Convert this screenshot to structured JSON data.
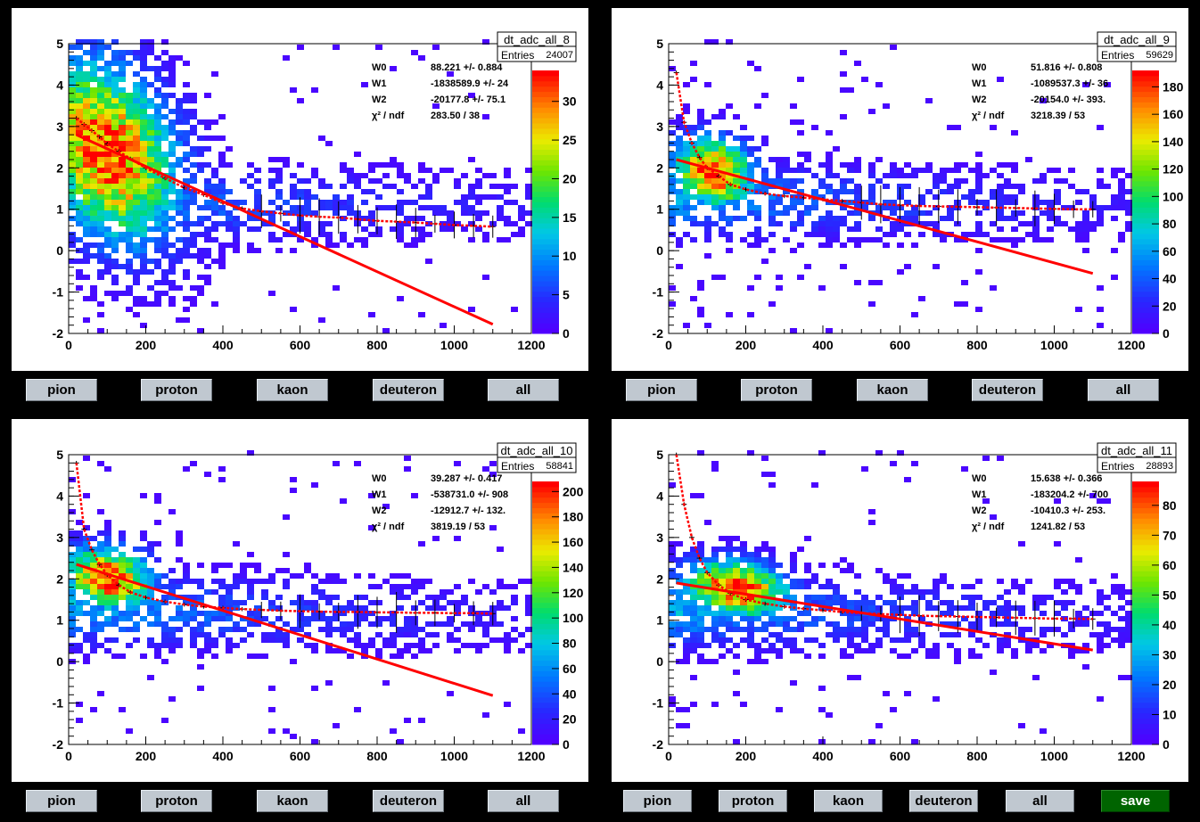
{
  "buttons": {
    "pion": "pion",
    "proton": "proton",
    "kaon": "kaon",
    "deuteron": "deuteron",
    "all": "all",
    "save": "save"
  },
  "chart_data": [
    {
      "type": "scatter",
      "title": "dt_adc_all_8",
      "entries_label": "Entries",
      "entries": "24007",
      "xlim": [
        0,
        1200
      ],
      "ylim": [
        -2,
        5
      ],
      "xticks": [
        0,
        200,
        400,
        600,
        800,
        1000,
        1200
      ],
      "yticks": [
        -2,
        -1,
        0,
        1,
        2,
        3,
        4,
        5
      ],
      "zticks": [
        0,
        5,
        10,
        15,
        20,
        25,
        30
      ],
      "zmax": 34,
      "fit": [
        {
          "name": "W0",
          "value": "88.221 +/- 0.884"
        },
        {
          "name": "W1",
          "value": "-1838589.9 +/- 24"
        },
        {
          "name": "W2",
          "value": "-20177.8 +/- 75.1"
        }
      ],
      "chi2_label": "χ² / ndf",
      "chi2": "283.50 / 38",
      "line": {
        "x": [
          20,
          1100
        ],
        "y": [
          2.8,
          -1.78
        ]
      },
      "profile": [
        [
          20,
          3.2
        ],
        [
          40,
          3.05
        ],
        [
          60,
          2.9
        ],
        [
          80,
          2.75
        ],
        [
          100,
          2.58
        ],
        [
          130,
          2.4
        ],
        [
          160,
          2.22
        ],
        [
          200,
          2.0
        ],
        [
          250,
          1.75
        ],
        [
          300,
          1.52
        ],
        [
          350,
          1.35
        ],
        [
          400,
          1.15
        ],
        [
          450,
          1.02
        ],
        [
          500,
          0.95
        ],
        [
          550,
          0.9
        ],
        [
          600,
          0.85
        ],
        [
          650,
          0.82
        ],
        [
          700,
          0.8
        ],
        [
          750,
          0.76
        ],
        [
          800,
          0.72
        ],
        [
          850,
          0.7
        ],
        [
          900,
          0.68
        ],
        [
          950,
          0.65
        ],
        [
          1000,
          0.62
        ],
        [
          1050,
          0.6
        ],
        [
          1100,
          0.58
        ]
      ],
      "blob": {
        "cx": 95,
        "cy": 2.4,
        "sx": 120,
        "sy": 1.35,
        "slope": -0.0038,
        "peak": 30
      }
    },
    {
      "type": "scatter",
      "title": "dt_adc_all_9",
      "entries_label": "Entries",
      "entries": "59629",
      "xlim": [
        0,
        1200
      ],
      "ylim": [
        -2,
        5
      ],
      "xticks": [
        0,
        200,
        400,
        600,
        800,
        1000,
        1200
      ],
      "yticks": [
        -2,
        -1,
        0,
        1,
        2,
        3,
        4,
        5
      ],
      "zticks": [
        0,
        20,
        40,
        60,
        80,
        100,
        120,
        140,
        160,
        180
      ],
      "zmax": 192,
      "fit": [
        {
          "name": "W0",
          "value": "51.816 +/- 0.808"
        },
        {
          "name": "W1",
          "value": "-1089537.3 +/- 36"
        },
        {
          "name": "W2",
          "value": "-20154.0 +/- 393."
        }
      ],
      "chi2_label": "χ² / ndf",
      "chi2": "3218.39 / 53",
      "line": {
        "x": [
          20,
          1100
        ],
        "y": [
          2.2,
          -0.55
        ]
      },
      "profile": [
        [
          20,
          4.3
        ],
        [
          40,
          3.1
        ],
        [
          60,
          2.6
        ],
        [
          80,
          2.25
        ],
        [
          100,
          2.0
        ],
        [
          130,
          1.8
        ],
        [
          160,
          1.6
        ],
        [
          200,
          1.48
        ],
        [
          250,
          1.38
        ],
        [
          300,
          1.32
        ],
        [
          350,
          1.28
        ],
        [
          400,
          1.24
        ],
        [
          450,
          1.2
        ],
        [
          500,
          1.16
        ],
        [
          550,
          1.12
        ],
        [
          600,
          1.1
        ],
        [
          650,
          1.08
        ],
        [
          700,
          1.07
        ],
        [
          750,
          1.06
        ],
        [
          800,
          1.05
        ],
        [
          850,
          1.04
        ],
        [
          900,
          1.03
        ],
        [
          950,
          1.02
        ],
        [
          1000,
          1.01
        ],
        [
          1050,
          1.0
        ],
        [
          1100,
          1.0
        ]
      ],
      "blob": {
        "cx": 110,
        "cy": 1.9,
        "sx": 70,
        "sy": 0.55,
        "slope": -0.0012,
        "peak": 180
      }
    },
    {
      "type": "scatter",
      "title": "dt_adc_all_10",
      "entries_label": "Entries",
      "entries": "58841",
      "xlim": [
        0,
        1200
      ],
      "ylim": [
        -2,
        5
      ],
      "xticks": [
        0,
        200,
        400,
        600,
        800,
        1000,
        1200
      ],
      "yticks": [
        -2,
        -1,
        0,
        1,
        2,
        3,
        4,
        5
      ],
      "zticks": [
        0,
        20,
        40,
        60,
        80,
        100,
        120,
        140,
        160,
        180,
        200
      ],
      "zmax": 208,
      "fit": [
        {
          "name": "W0",
          "value": "39.287 +/- 0.417"
        },
        {
          "name": "W1",
          "value": "-538731.0 +/- 908"
        },
        {
          "name": "W2",
          "value": "-12912.7 +/- 132."
        }
      ],
      "chi2_label": "χ² / ndf",
      "chi2": "3819.19 / 53",
      "line": {
        "x": [
          20,
          1100
        ],
        "y": [
          2.35,
          -0.82
        ]
      },
      "profile": [
        [
          20,
          4.8
        ],
        [
          40,
          3.2
        ],
        [
          60,
          2.7
        ],
        [
          80,
          2.35
        ],
        [
          100,
          2.1
        ],
        [
          130,
          1.85
        ],
        [
          160,
          1.68
        ],
        [
          200,
          1.55
        ],
        [
          250,
          1.45
        ],
        [
          300,
          1.38
        ],
        [
          350,
          1.33
        ],
        [
          400,
          1.3
        ],
        [
          450,
          1.27
        ],
        [
          500,
          1.25
        ],
        [
          550,
          1.23
        ],
        [
          600,
          1.22
        ],
        [
          650,
          1.21
        ],
        [
          700,
          1.2
        ],
        [
          750,
          1.2
        ],
        [
          800,
          1.19
        ],
        [
          850,
          1.19
        ],
        [
          900,
          1.18
        ],
        [
          950,
          1.18
        ],
        [
          1000,
          1.17
        ],
        [
          1050,
          1.17
        ],
        [
          1100,
          1.16
        ]
      ],
      "blob": {
        "cx": 100,
        "cy": 2.0,
        "sx": 75,
        "sy": 0.5,
        "slope": -0.0012,
        "peak": 200
      }
    },
    {
      "type": "scatter",
      "title": "dt_adc_all_11",
      "entries_label": "Entries",
      "entries": "28893",
      "xlim": [
        0,
        1200
      ],
      "ylim": [
        -2,
        5
      ],
      "xticks": [
        0,
        200,
        400,
        600,
        800,
        1000,
        1200
      ],
      "yticks": [
        -2,
        -1,
        0,
        1,
        2,
        3,
        4,
        5
      ],
      "zticks": [
        0,
        10,
        20,
        30,
        40,
        50,
        60,
        70,
        80
      ],
      "zmax": 88,
      "fit": [
        {
          "name": "W0",
          "value": "15.638 +/- 0.366"
        },
        {
          "name": "W1",
          "value": "-183204.2 +/- 700"
        },
        {
          "name": "W2",
          "value": "-10410.3 +/- 253."
        }
      ],
      "chi2_label": "χ² / ndf",
      "chi2": "1241.82 / 53",
      "line": {
        "x": [
          20,
          1100
        ],
        "y": [
          1.9,
          0.28
        ]
      },
      "profile": [
        [
          20,
          5.0
        ],
        [
          40,
          3.8
        ],
        [
          60,
          3.0
        ],
        [
          80,
          2.5
        ],
        [
          100,
          2.15
        ],
        [
          130,
          1.85
        ],
        [
          160,
          1.65
        ],
        [
          200,
          1.5
        ],
        [
          250,
          1.4
        ],
        [
          300,
          1.33
        ],
        [
          350,
          1.28
        ],
        [
          400,
          1.24
        ],
        [
          450,
          1.2
        ],
        [
          500,
          1.17
        ],
        [
          550,
          1.15
        ],
        [
          600,
          1.13
        ],
        [
          650,
          1.11
        ],
        [
          700,
          1.1
        ],
        [
          750,
          1.09
        ],
        [
          800,
          1.08
        ],
        [
          850,
          1.07
        ],
        [
          900,
          1.06
        ],
        [
          950,
          1.05
        ],
        [
          1000,
          1.04
        ],
        [
          1050,
          1.04
        ],
        [
          1100,
          1.03
        ]
      ],
      "blob": {
        "cx": 170,
        "cy": 1.75,
        "sx": 90,
        "sy": 0.45,
        "slope": -0.0009,
        "peak": 85
      }
    }
  ]
}
